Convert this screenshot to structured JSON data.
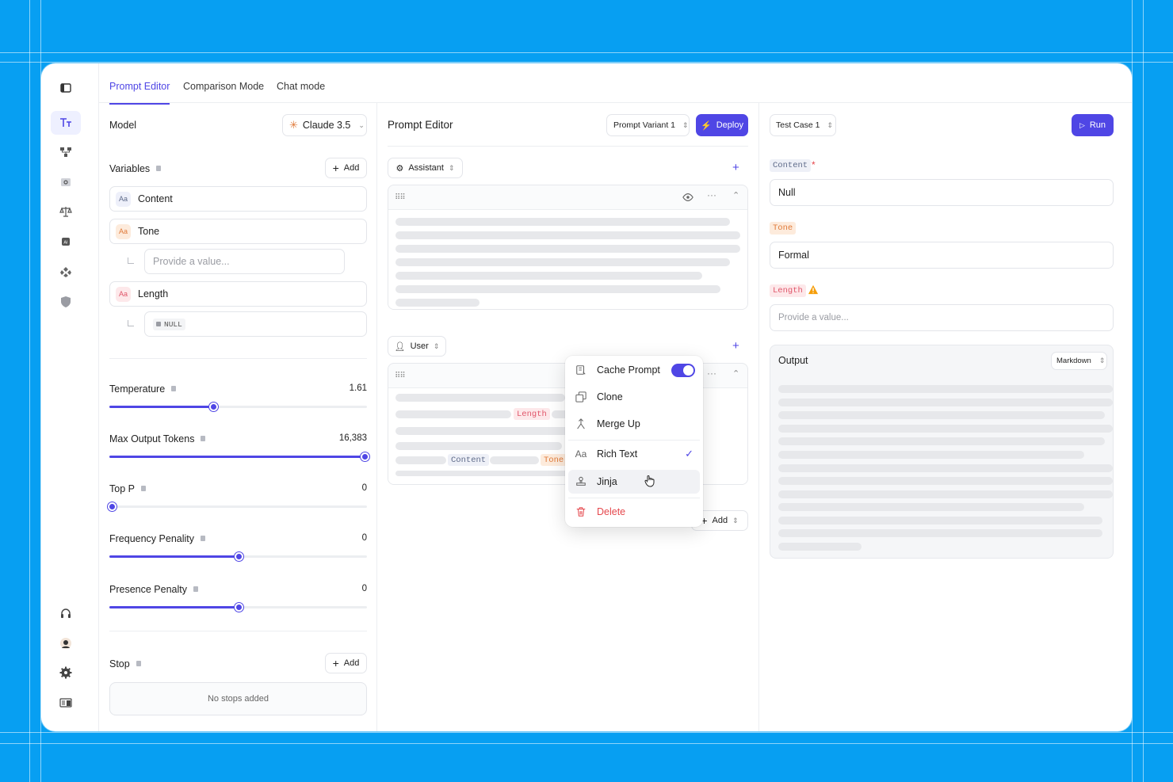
{
  "tabs": [
    "Prompt Editor",
    "Comparison Mode",
    "Chat mode"
  ],
  "rail_icons": [
    "panel-toggle-icon",
    "text-icon",
    "workflow-icon",
    "search-box-icon",
    "scale-icon",
    "ai-chip-icon",
    "diamond-icon",
    "shield-icon",
    "headphones-icon",
    "avatar",
    "gear-icon",
    "docs-icon"
  ],
  "left": {
    "model_label": "Model",
    "model_value": "Claude 3.5",
    "variables_label": "Variables",
    "add_label": "Add",
    "variables": [
      {
        "name": "Content",
        "badge": "Aa",
        "color": "#eef0fa"
      },
      {
        "name": "Tone",
        "badge": "Aa",
        "color": "#fdebdc"
      },
      {
        "name": "Length",
        "badge": "Aa",
        "color": "#fde8ea"
      }
    ],
    "tone_placeholder": "Provide a value...",
    "length_value": "NULL",
    "sliders": [
      {
        "label": "Temperature",
        "value": "1.61",
        "fraction": 0.4
      },
      {
        "label": "Max Output Tokens",
        "value": "16,383",
        "fraction": 1.0
      },
      {
        "label": "Top P",
        "value": "0",
        "fraction": 0.0
      },
      {
        "label": "Frequency Penality",
        "value": "0",
        "fraction": 0.5
      },
      {
        "label": "Presence Penalty",
        "value": "0",
        "fraction": 0.5
      }
    ],
    "stop_label": "Stop",
    "stop_add": "Add",
    "no_stops": "No stops added"
  },
  "middle": {
    "title": "Prompt Editor",
    "variant": "Prompt Variant 1",
    "deploy": "Deploy",
    "assistant_role": "Assistant",
    "user_role": "User",
    "add_label": "Add",
    "chips": {
      "length": "Length",
      "content": "Content",
      "tone": "Tone"
    }
  },
  "menu": {
    "items": [
      "Cache Prompt",
      "Clone",
      "Merge Up",
      "Rich Text",
      "Jinja",
      "Delete"
    ],
    "cache_enabled": true
  },
  "right": {
    "test_case": "Test Case 1",
    "run": "Run",
    "content_label": "Content",
    "content_value": "Null",
    "tone_label": "Tone",
    "tone_value": "Formal",
    "length_label": "Length",
    "length_placeholder": "Provide a value...",
    "output_label": "Output",
    "output_format": "Markdown"
  },
  "colors": {
    "accent": "#4f46e5",
    "background": "#079ff2",
    "danger": "#e5484d",
    "warning": "#f59e0b"
  }
}
